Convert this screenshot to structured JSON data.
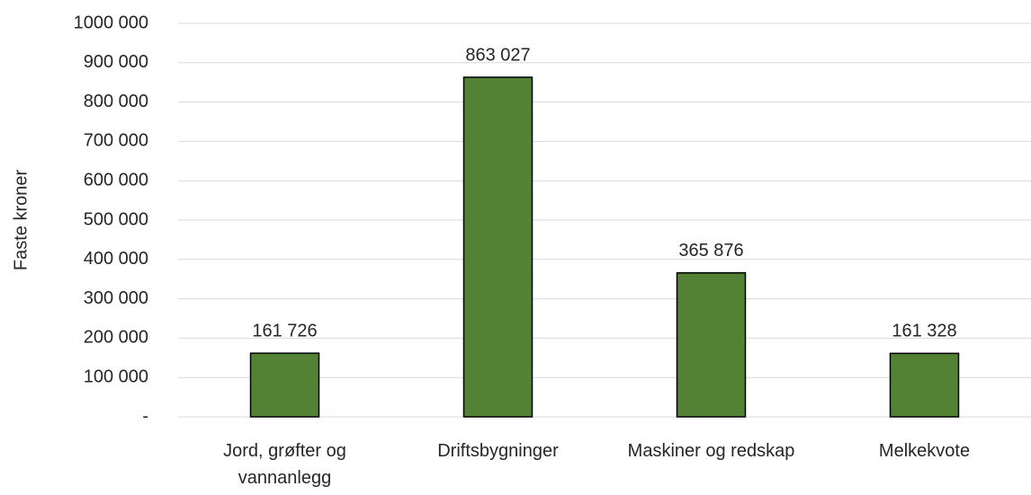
{
  "chart_data": {
    "type": "bar",
    "y_axis_label": "Faste kroner",
    "categories": [
      "Jord, grøfter og vannanlegg",
      "Driftsbygninger",
      "Maskiner og redskap",
      "Melkekvote"
    ],
    "values": [
      161726,
      863027,
      365876,
      161328
    ],
    "value_labels": [
      "161 726",
      "863 027",
      "365 876",
      "161 328"
    ],
    "color": "#548235",
    "ylim": [
      0,
      1000000
    ],
    "yticks": [
      {
        "value": 0,
        "label": "-"
      },
      {
        "value": 100000,
        "label": "100 000"
      },
      {
        "value": 200000,
        "label": "200 000"
      },
      {
        "value": 300000,
        "label": "300 000"
      },
      {
        "value": 400000,
        "label": "400 000"
      },
      {
        "value": 500000,
        "label": "500 000"
      },
      {
        "value": 600000,
        "label": "600 000"
      },
      {
        "value": 700000,
        "label": "700 000"
      },
      {
        "value": 800000,
        "label": "800 000"
      },
      {
        "value": 900000,
        "label": "900 000"
      },
      {
        "value": 1000000,
        "label": "1000 000"
      }
    ],
    "grid": true
  }
}
